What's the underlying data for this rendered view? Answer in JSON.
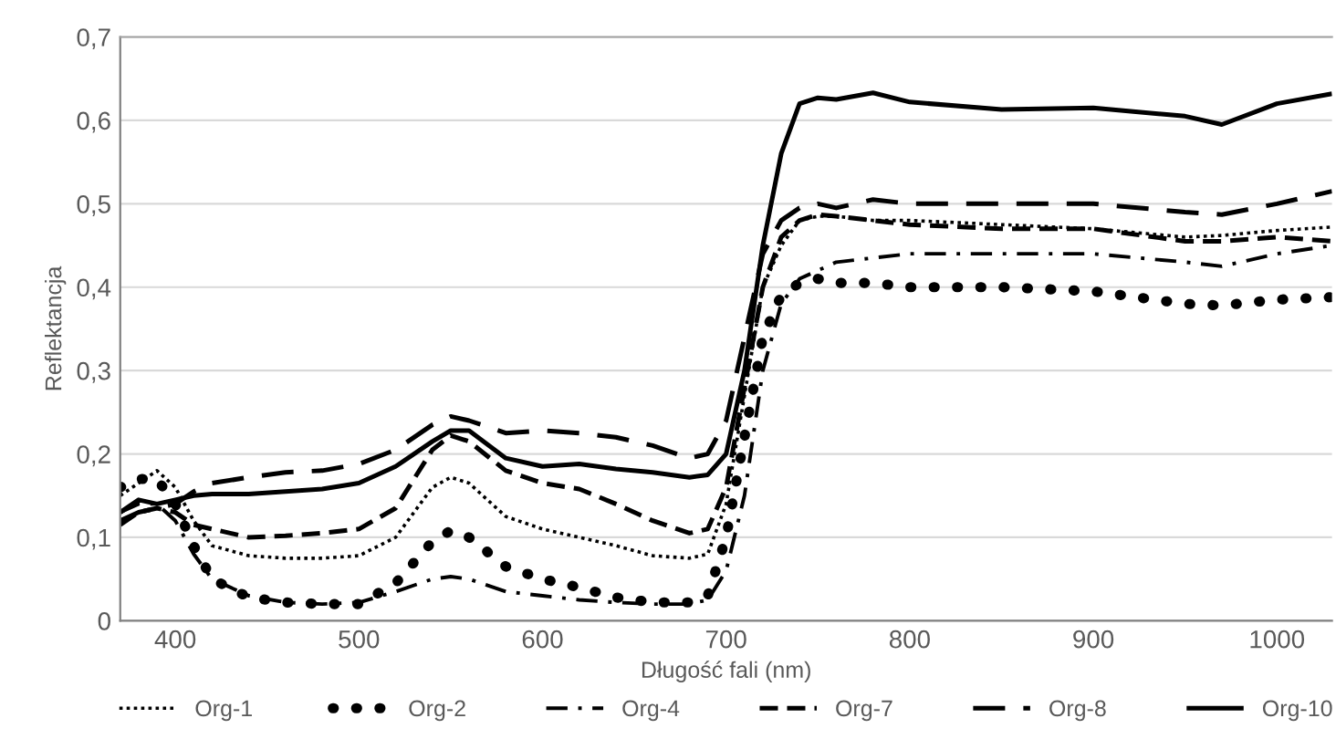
{
  "chart_data": {
    "type": "line",
    "xlabel": "Długość fali (nm)",
    "ylabel": "Reflektancja",
    "x": [
      370,
      380,
      390,
      400,
      410,
      420,
      440,
      460,
      480,
      500,
      520,
      540,
      550,
      560,
      580,
      600,
      620,
      640,
      660,
      680,
      690,
      700,
      710,
      720,
      730,
      740,
      750,
      760,
      780,
      800,
      850,
      900,
      950,
      970,
      1000,
      1030
    ],
    "series": [
      {
        "name": "Org-1",
        "color": "#000000",
        "line_style": "dotted",
        "values": [
          0.15,
          0.165,
          0.18,
          0.16,
          0.12,
          0.09,
          0.078,
          0.075,
          0.075,
          0.078,
          0.1,
          0.16,
          0.172,
          0.165,
          0.125,
          0.11,
          0.1,
          0.09,
          0.078,
          0.075,
          0.08,
          0.14,
          0.27,
          0.4,
          0.45,
          0.48,
          0.485,
          0.485,
          0.48,
          0.48,
          0.475,
          0.47,
          0.46,
          0.462,
          0.468,
          0.472
        ]
      },
      {
        "name": "Org-2",
        "color": "#000000",
        "line_style": "heavy dotted",
        "values": [
          0.16,
          0.17,
          0.17,
          0.14,
          0.09,
          0.05,
          0.028,
          0.022,
          0.02,
          0.02,
          0.045,
          0.095,
          0.108,
          0.1,
          0.065,
          0.05,
          0.04,
          0.028,
          0.022,
          0.022,
          0.03,
          0.1,
          0.22,
          0.34,
          0.39,
          0.405,
          0.41,
          0.405,
          0.405,
          0.4,
          0.4,
          0.395,
          0.38,
          0.378,
          0.385,
          0.388
        ]
      },
      {
        "name": "Org-4",
        "color": "#000000",
        "line_style": "dashdot",
        "values": [
          0.13,
          0.14,
          0.14,
          0.12,
          0.08,
          0.05,
          0.03,
          0.022,
          0.02,
          0.022,
          0.035,
          0.05,
          0.053,
          0.05,
          0.035,
          0.03,
          0.025,
          0.022,
          0.02,
          0.02,
          0.025,
          0.06,
          0.15,
          0.3,
          0.38,
          0.41,
          0.42,
          0.43,
          0.435,
          0.44,
          0.44,
          0.44,
          0.43,
          0.425,
          0.44,
          0.45
        ]
      },
      {
        "name": "Org-7",
        "color": "#000000",
        "line_style": "dashed",
        "values": [
          0.115,
          0.13,
          0.135,
          0.13,
          0.115,
          0.11,
          0.1,
          0.102,
          0.105,
          0.11,
          0.135,
          0.205,
          0.222,
          0.215,
          0.18,
          0.165,
          0.158,
          0.14,
          0.12,
          0.105,
          0.11,
          0.16,
          0.28,
          0.4,
          0.46,
          0.48,
          0.487,
          0.485,
          0.48,
          0.475,
          0.47,
          0.47,
          0.455,
          0.455,
          0.46,
          0.455
        ]
      },
      {
        "name": "Org-8",
        "color": "#000000",
        "line_style": "long dashed",
        "values": [
          0.12,
          0.13,
          0.135,
          0.14,
          0.155,
          0.165,
          0.172,
          0.178,
          0.18,
          0.188,
          0.205,
          0.235,
          0.245,
          0.24,
          0.225,
          0.228,
          0.225,
          0.22,
          0.21,
          0.195,
          0.2,
          0.24,
          0.34,
          0.44,
          0.48,
          0.495,
          0.5,
          0.495,
          0.505,
          0.5,
          0.5,
          0.5,
          0.49,
          0.487,
          0.5,
          0.515
        ]
      },
      {
        "name": "Org-10",
        "color": "#000000",
        "line_style": "solid",
        "values": [
          0.13,
          0.145,
          0.14,
          0.145,
          0.15,
          0.152,
          0.152,
          0.155,
          0.158,
          0.165,
          0.185,
          0.215,
          0.228,
          0.228,
          0.195,
          0.185,
          0.188,
          0.182,
          0.178,
          0.172,
          0.175,
          0.2,
          0.3,
          0.45,
          0.56,
          0.62,
          0.627,
          0.625,
          0.633,
          0.622,
          0.613,
          0.615,
          0.605,
          0.595,
          0.62,
          0.632
        ]
      }
    ],
    "xlim": [
      370,
      1030
    ],
    "xticks": [
      400,
      500,
      600,
      700,
      800,
      900,
      1000
    ],
    "ylim": [
      0,
      0.7
    ],
    "yticks": [
      0,
      {
        "value": 0.1,
        "label": "0,1"
      },
      {
        "value": 0.2,
        "label": "0,2"
      },
      {
        "value": 0.3,
        "label": "0,3"
      },
      {
        "value": 0.4,
        "label": "0,4"
      },
      {
        "value": 0.5,
        "label": "0,5"
      },
      {
        "value": 0.6,
        "label": "0,6"
      },
      {
        "value": 0.7,
        "label": "0,7"
      }
    ],
    "grid": "y",
    "legend": "bottom"
  }
}
